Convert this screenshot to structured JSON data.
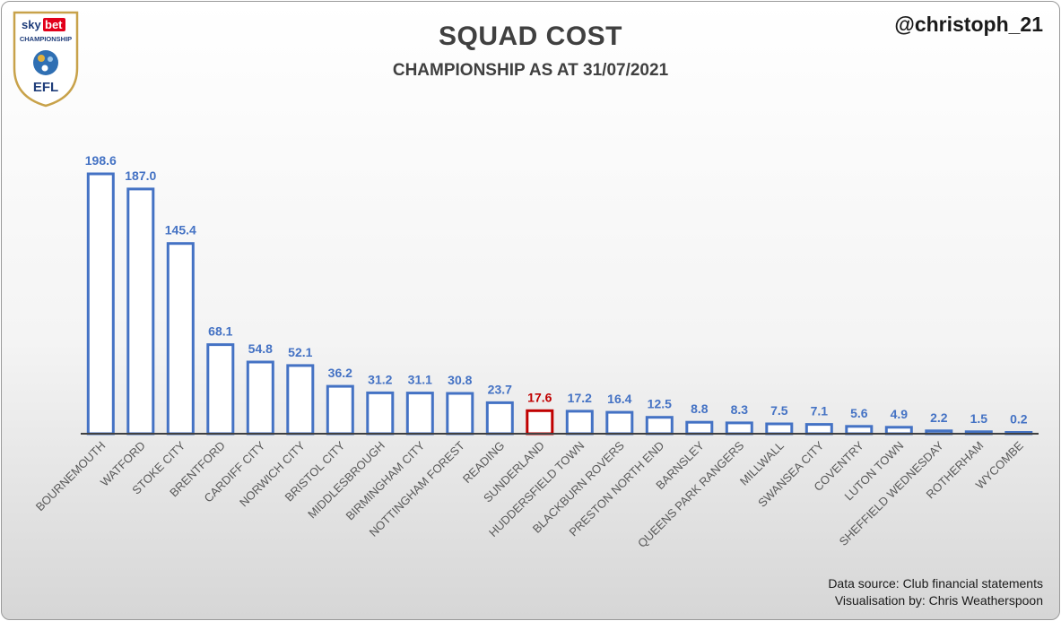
{
  "header": {
    "title": "SQUAD COST",
    "subtitle": "CHAMPIONSHIP AS AT 31/07/2021",
    "handle": "@christoph_21"
  },
  "logo": {
    "line1a": "sky",
    "line1b": "bet",
    "line2": "CHAMPIONSHIP",
    "line3": "EFL",
    "colors": {
      "sky_red": "#e2001a",
      "navy": "#1f3d7a",
      "gold": "#c8a24a"
    }
  },
  "footer": {
    "source": "Data source: Club financial statements",
    "credit": "Visualisation by: Chris Weatherspoon"
  },
  "chart_data": {
    "type": "bar",
    "title": "SQUAD COST",
    "subtitle": "CHAMPIONSHIP AS AT 31/07/2021",
    "xlabel": "",
    "ylabel": "",
    "ylim": [
      0,
      200
    ],
    "grid": false,
    "legend": "none",
    "categories": [
      "BOURNEMOUTH",
      "WATFORD",
      "STOKE CITY",
      "BRENTFORD",
      "CARDIFF CITY",
      "NORWICH CITY",
      "BRISTOL CITY",
      "MIDDLESBROUGH",
      "BIRMINGHAM CITY",
      "NOTTINGHAM FOREST",
      "READING",
      "SUNDERLAND",
      "HUDDERSFIELD TOWN",
      "BLACKBURN ROVERS",
      "PRESTON NORTH END",
      "BARNSLEY",
      "QUEENS PARK RANGERS",
      "MILLWALL",
      "SWANSEA CITY",
      "COVENTRY",
      "LUTON TOWN",
      "SHEFFIELD WEDNESDAY",
      "ROTHERHAM",
      "WYCOMBE"
    ],
    "values": [
      198.6,
      187.0,
      145.4,
      68.1,
      54.8,
      52.1,
      36.2,
      31.2,
      31.1,
      30.8,
      23.7,
      17.6,
      17.2,
      16.4,
      12.5,
      8.8,
      8.3,
      7.5,
      7.1,
      5.6,
      4.9,
      2.2,
      1.5,
      0.2
    ],
    "labels": [
      "198.6",
      "187.0",
      "145.4",
      "68.1",
      "54.8",
      "52.1",
      "36.2",
      "31.2",
      "31.1",
      "30.8",
      "23.7",
      "17.6",
      "17.2",
      "16.4",
      "12.5",
      "8.8",
      "8.3",
      "7.5",
      "7.1",
      "5.6",
      "4.9",
      "2.2",
      "1.5",
      "0.2"
    ],
    "highlight": "SUNDERLAND",
    "colors": {
      "bar": "#4472c4",
      "highlight": "#c00000",
      "axis": "#404040",
      "category_label": "#595959"
    }
  }
}
